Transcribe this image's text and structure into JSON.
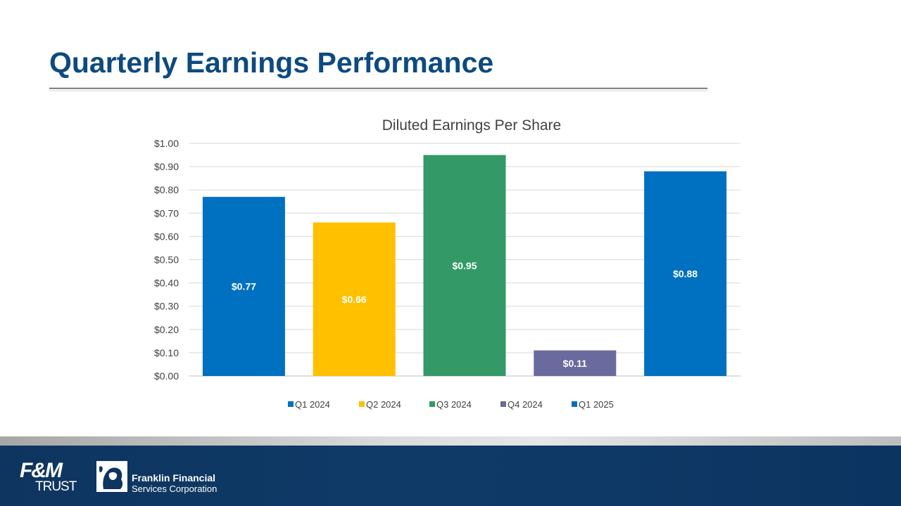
{
  "slide": {
    "title": "Quarterly Earnings Performance"
  },
  "chart_data": {
    "type": "bar",
    "title": "Diluted Earnings Per Share",
    "categories": [
      "Q1 2024",
      "Q2 2024",
      "Q3 2024",
      "Q4 2024",
      "Q1 2025"
    ],
    "values": [
      0.77,
      0.66,
      0.95,
      0.11,
      0.88
    ],
    "data_labels": [
      "$0.77",
      "$0.66",
      "$0.95",
      "$0.11",
      "$0.88"
    ],
    "colors": [
      "#0070c0",
      "#ffc000",
      "#339966",
      "#6a6a9e",
      "#0070c0"
    ],
    "ylim": [
      0,
      1.0
    ],
    "yticks": [
      0.0,
      0.1,
      0.2,
      0.3,
      0.4,
      0.5,
      0.6,
      0.7,
      0.8,
      0.9,
      1.0
    ],
    "ytick_labels": [
      "$0.00",
      "$0.10",
      "$0.20",
      "$0.30",
      "$0.40",
      "$0.50",
      "$0.60",
      "$0.70",
      "$0.80",
      "$0.90",
      "$1.00"
    ],
    "xlabel": "",
    "ylabel": "",
    "grid": true,
    "legend": "bottom"
  },
  "footer": {
    "fm_logo_top": "F&M",
    "fm_logo_bottom": "TRUST",
    "company_line1": "Franklin Financial",
    "company_line2": "Services Corporation"
  },
  "colors": {
    "title": "#0d4a80",
    "footer_bg": "#0e3560"
  }
}
